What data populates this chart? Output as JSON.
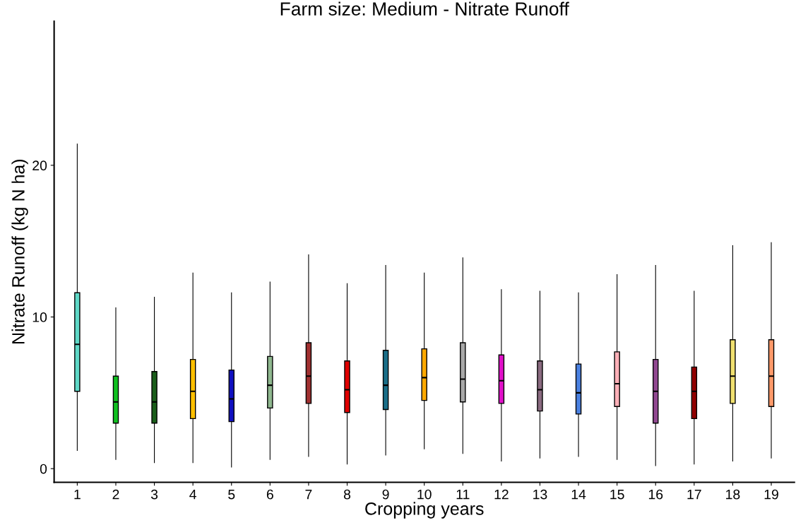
{
  "chart_data": {
    "type": "box",
    "title": "Farm size: Medium - Nitrate Runoff",
    "xlabel": "Cropping years",
    "ylabel": "Nitrate Runoff (kg N ha)",
    "categories": [
      "1",
      "2",
      "3",
      "4",
      "5",
      "6",
      "7",
      "8",
      "9",
      "10",
      "11",
      "12",
      "13",
      "14",
      "15",
      "16",
      "17",
      "18",
      "19"
    ],
    "colors": [
      "#5fd9c8",
      "#10c020",
      "#1a5e1a",
      "#ffc000",
      "#1010c0",
      "#8fb88f",
      "#a03030",
      "#e00000",
      "#1a6e88",
      "#ffa800",
      "#a8a8a8",
      "#e010c8",
      "#8a6a80",
      "#4a80e0",
      "#ffb0b8",
      "#904890",
      "#900000",
      "#f0e070",
      "#ff9a6a"
    ],
    "boxes": [
      {
        "low": 1.2,
        "q1": 5.1,
        "median": 8.2,
        "q3": 11.6,
        "high": 21.4
      },
      {
        "low": 0.6,
        "q1": 3.0,
        "median": 4.4,
        "q3": 6.1,
        "high": 10.6
      },
      {
        "low": 0.4,
        "q1": 3.0,
        "median": 4.4,
        "q3": 6.4,
        "high": 11.3
      },
      {
        "low": 0.4,
        "q1": 3.3,
        "median": 5.1,
        "q3": 7.2,
        "high": 12.9
      },
      {
        "low": 0.1,
        "q1": 3.1,
        "median": 4.6,
        "q3": 6.5,
        "high": 11.6
      },
      {
        "low": 0.6,
        "q1": 4.0,
        "median": 5.5,
        "q3": 7.4,
        "high": 12.3
      },
      {
        "low": 0.8,
        "q1": 4.3,
        "median": 6.1,
        "q3": 8.3,
        "high": 14.1
      },
      {
        "low": 0.3,
        "q1": 3.7,
        "median": 5.2,
        "q3": 7.1,
        "high": 12.2
      },
      {
        "low": 0.9,
        "q1": 3.9,
        "median": 5.5,
        "q3": 7.8,
        "high": 13.4
      },
      {
        "low": 1.3,
        "q1": 4.5,
        "median": 6.0,
        "q3": 7.9,
        "high": 12.9
      },
      {
        "low": 1.0,
        "q1": 4.4,
        "median": 5.9,
        "q3": 8.3,
        "high": 13.9
      },
      {
        "low": 0.5,
        "q1": 4.3,
        "median": 5.8,
        "q3": 7.5,
        "high": 11.8
      },
      {
        "low": 0.7,
        "q1": 3.8,
        "median": 5.2,
        "q3": 7.1,
        "high": 11.7
      },
      {
        "low": 0.8,
        "q1": 3.6,
        "median": 5.0,
        "q3": 6.9,
        "high": 11.6
      },
      {
        "low": 0.6,
        "q1": 4.1,
        "median": 5.6,
        "q3": 7.7,
        "high": 12.8
      },
      {
        "low": 0.2,
        "q1": 3.0,
        "median": 5.1,
        "q3": 7.2,
        "high": 13.4
      },
      {
        "low": 0.3,
        "q1": 3.3,
        "median": 5.1,
        "q3": 6.7,
        "high": 11.7
      },
      {
        "low": 0.5,
        "q1": 4.3,
        "median": 6.1,
        "q3": 8.5,
        "high": 14.7
      },
      {
        "low": 0.7,
        "q1": 4.1,
        "median": 6.1,
        "q3": 8.5,
        "high": 14.9
      }
    ],
    "ylim": [
      -0.9,
      29.5
    ],
    "yticks": [
      0,
      10,
      20
    ],
    "grid": false,
    "legend": false
  }
}
